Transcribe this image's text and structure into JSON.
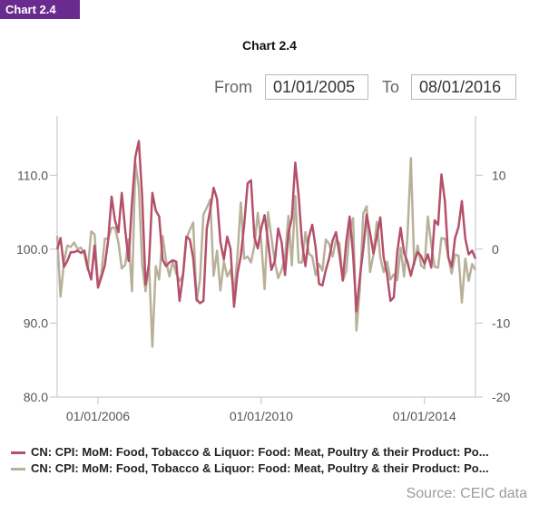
{
  "badge": "Chart 2.4",
  "range": {
    "from_label": "From",
    "from_value": "01/01/2005",
    "to_label": "To",
    "to_value": "08/01/2016"
  },
  "source": "Source: CEIC data",
  "chart_data": {
    "type": "line",
    "title": "Chart 2.4",
    "x_ticks": [
      "01/01/2006",
      "01/01/2010",
      "01/01/2014"
    ],
    "x_range": [
      "2005-01",
      "2016-08"
    ],
    "left_axis": {
      "ticks": [
        "80.0",
        "90.0",
        "100.0",
        "110.0"
      ],
      "range": [
        80,
        118
      ]
    },
    "right_axis": {
      "ticks": [
        "-20",
        "-10",
        "0",
        "10"
      ],
      "range": [
        -20,
        18
      ]
    },
    "grid": false,
    "legend_placement": "bottom",
    "colors": {
      "series1": "#b5506b",
      "series2": "#b8b199"
    },
    "series": [
      {
        "name": "CN: CPI: MoM: Food, Tobacco & Liquor: Food: Meat, Poultry & their Product: Po...",
        "axis": "left",
        "values": [
          100.0,
          101.5,
          97.6,
          98.4,
          99.6,
          99.6,
          99.8,
          99.5,
          99.8,
          97.5,
          95.9,
          100.5,
          94.8,
          96.2,
          97.8,
          101.2,
          107.1,
          103.9,
          102.3,
          107.6,
          102.6,
          98.4,
          106.4,
          112.5,
          114.6,
          107.0,
          95.2,
          98.0,
          107.6,
          105.2,
          104.4,
          98.6,
          97.7,
          98.2,
          98.5,
          98.3,
          93.0,
          96.5,
          101.7,
          101.3,
          98.8,
          93.2,
          92.7,
          93.0,
          102.8,
          105.3,
          108.3,
          106.8,
          101.0,
          98.6,
          101.7,
          100.0,
          92.2,
          96.6,
          99.1,
          103.3,
          108.9,
          109.3,
          101.6,
          100.1,
          102.8,
          104.6,
          101.0,
          97.2,
          98.4,
          102.8,
          100.9,
          96.5,
          102.2,
          104.2,
          111.7,
          107.3,
          100.8,
          97.7,
          101.6,
          103.3,
          100.3,
          95.3,
          95.1,
          97.2,
          98.8,
          101.2,
          102.3,
          99.3,
          95.8,
          101.0,
          104.4,
          99.3,
          91.6,
          96.2,
          100.0,
          104.7,
          102.2,
          99.4,
          101.7,
          104.3,
          98.9,
          96.6,
          93.0,
          93.5,
          99.6,
          102.9,
          99.5,
          98.3,
          96.4,
          98.3,
          99.6,
          99.1,
          98.0,
          99.3,
          97.5,
          103.9,
          103.3,
          110.1,
          106.5,
          98.9,
          97.6,
          101.5,
          103.0,
          106.5,
          101.4,
          99.3,
          99.8,
          98.7
        ]
      },
      {
        "name": "CN: CPI: MoM: Food, Tobacco & Liquor: Food: Meat, Poultry & their Product: Po...",
        "axis": "right",
        "values": [
          1.8,
          -6.4,
          -1.8,
          0.5,
          0.3,
          0.9,
          0.0,
          0.2,
          -0.7,
          -2.8,
          2.4,
          2.0,
          -4.7,
          -3.4,
          1.4,
          1.4,
          2.9,
          2.9,
          0.9,
          -2.6,
          -2.1,
          1.3,
          -5.7,
          11.7,
          8.3,
          -2.1,
          -5.7,
          -1.9,
          -13.2,
          -2.3,
          -4.1,
          1.8,
          -1.5,
          -3.7,
          -1.6,
          -3.3,
          -4.3,
          -3.5,
          1.4,
          2.6,
          3.6,
          -7.0,
          -4.1,
          4.7,
          5.6,
          6.7,
          -3.6,
          -0.2,
          -5.6,
          -1.7,
          -3.7,
          -2.8,
          -5.9,
          -1.1,
          6.3,
          -1.3,
          -1.0,
          -1.8,
          0.5,
          4.9,
          1.0,
          -5.4,
          5.0,
          1.6,
          -1.8,
          -3.9,
          -2.8,
          -1.1,
          4.5,
          -2.2,
          7.2,
          -1.8,
          -1.8,
          2.3,
          -0.6,
          -1.0,
          -3.5,
          -2.0,
          -2.9,
          1.3,
          0.7,
          -1.0,
          1.3,
          0.8,
          -4.3,
          -2.9,
          2.5,
          4.2,
          -11.0,
          -5.3,
          4.8,
          5.8,
          -3.1,
          -0.7,
          3.7,
          -1.1,
          -3.1,
          -1.7,
          -4.1,
          -3.4,
          -4.2,
          0.2,
          -3.7,
          1.6,
          12.3,
          -2.1,
          0.5,
          -2.2,
          -2.6,
          4.4,
          0.6,
          -2.4,
          -2.5,
          1.5,
          1.4,
          -1.0,
          -3.3,
          -0.7,
          -0.9,
          -7.2,
          -1.3,
          -4.3,
          -2.0,
          -2.8
        ]
      }
    ]
  }
}
